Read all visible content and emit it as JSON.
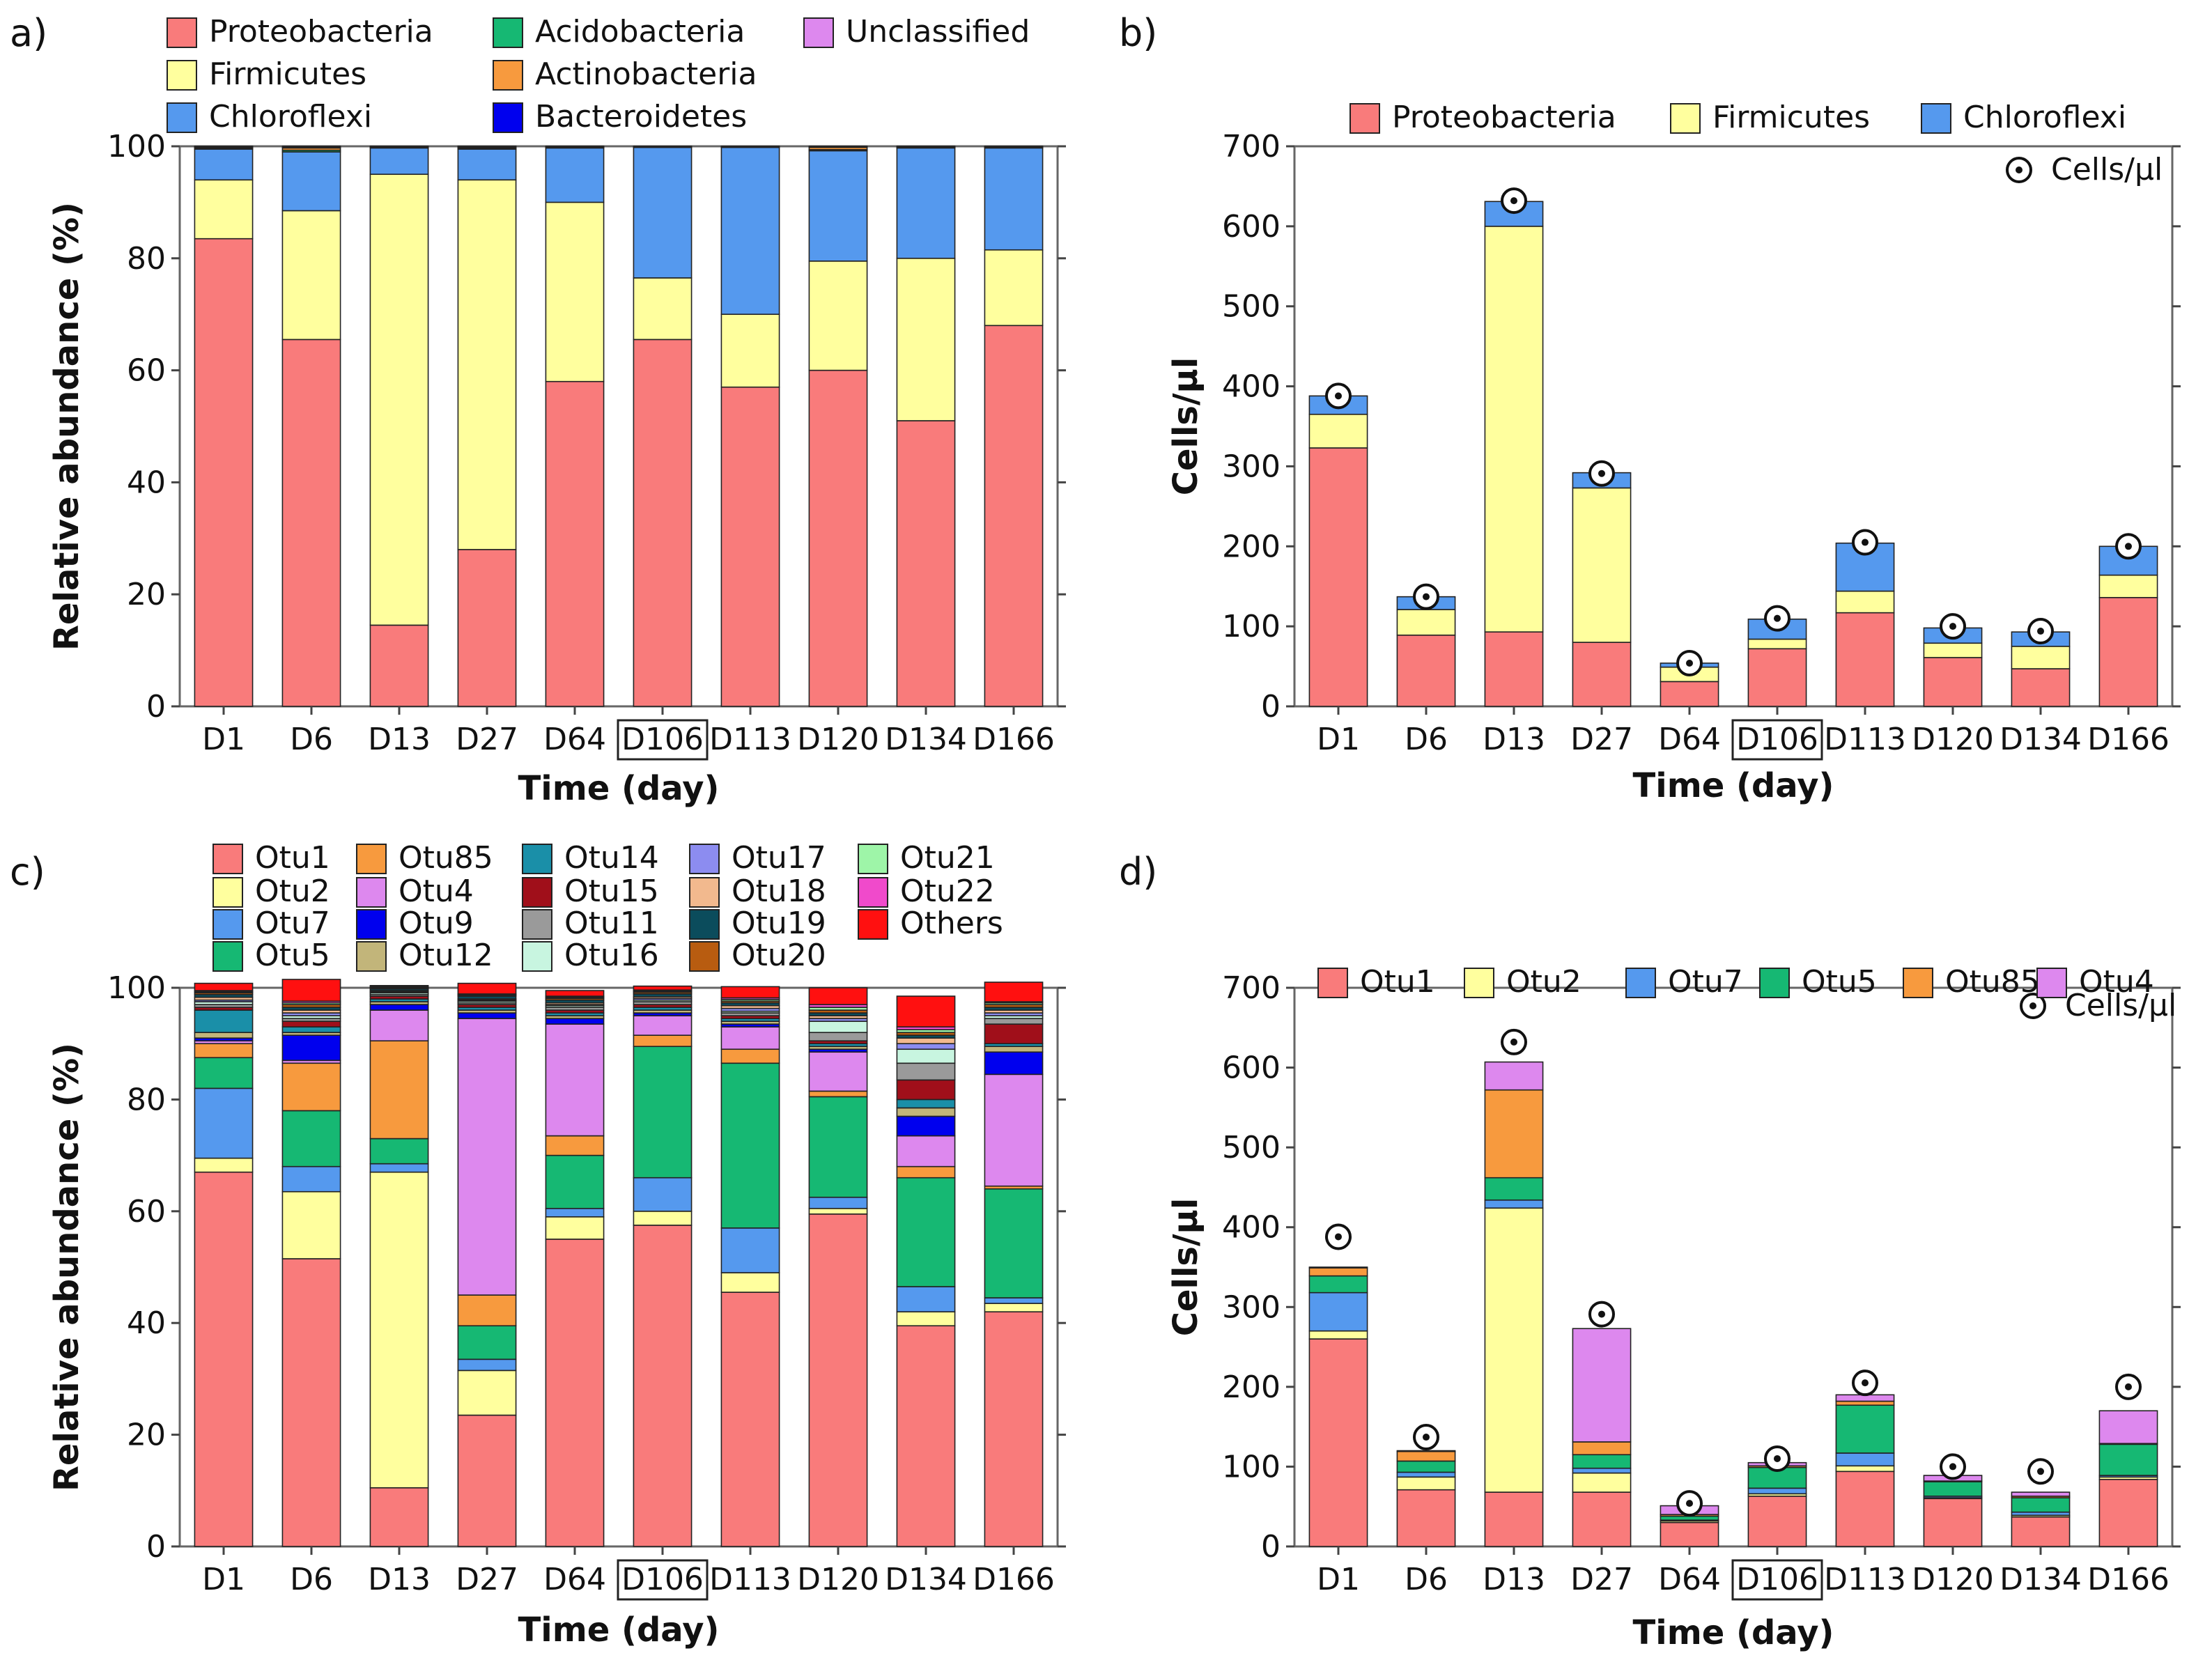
{
  "colors": {
    "Proteobacteria": "#f97b7b",
    "Firmicutes": "#ffff9e",
    "Chloroflexi": "#5599ee",
    "Acidobacteria": "#16b873",
    "Actinobacteria": "#f79a3e",
    "Bacteroidetes": "#0000ee",
    "Unclassified": "#dd88ee",
    "Otu1": "#f97b7b",
    "Otu2": "#ffff9e",
    "Otu7": "#5599ee",
    "Otu5": "#16b873",
    "Otu85": "#f79a3e",
    "Otu4": "#dd88ee",
    "Otu9": "#0000ee",
    "Otu12": "#c2b57a",
    "Otu14": "#1a8fa8",
    "Otu15": "#a00f1a",
    "Otu11": "#9a9a9a",
    "Otu16": "#c8f5e0",
    "Otu17": "#8c8cf0",
    "Otu18": "#f2b98e",
    "Otu19": "#0b4c5c",
    "Otu20": "#b85c10",
    "Otu21": "#9ef5a8",
    "Otu22": "#f04acb",
    "Others": "#ff1010",
    "cells_marker": "#111111"
  },
  "chart_data": [
    {
      "panel": "a)",
      "type": "bar",
      "stacked": true,
      "title": "",
      "xlabel": "Time (day)",
      "ylabel": "Relative abundance (%)",
      "ylim": [
        0,
        100
      ],
      "yticks": [
        0,
        20,
        40,
        60,
        80,
        100
      ],
      "categories": [
        "D1",
        "D6",
        "D13",
        "D27",
        "D64",
        "D106",
        "D113",
        "D120",
        "D134",
        "D166"
      ],
      "highlighted_category": "D106",
      "legend": [
        "Proteobacteria",
        "Firmicutes",
        "Chloroflexi",
        "Acidobacteria",
        "Actinobacteria",
        "Bacteroidetes",
        "Unclassified"
      ],
      "series": [
        {
          "name": "Proteobacteria",
          "values": [
            83.5,
            65.5,
            14.5,
            28.0,
            58.0,
            65.5,
            57.0,
            60.0,
            51.0,
            68.0
          ]
        },
        {
          "name": "Firmicutes",
          "values": [
            10.5,
            23.0,
            80.5,
            66.0,
            32.0,
            11.0,
            13.0,
            19.5,
            29.0,
            13.5
          ]
        },
        {
          "name": "Chloroflexi",
          "values": [
            5.5,
            10.5,
            4.7,
            5.5,
            9.7,
            23.3,
            29.8,
            19.7,
            19.7,
            18.2
          ]
        },
        {
          "name": "Acidobacteria",
          "values": [
            0.1,
            0.3,
            0.1,
            0.1,
            0.1,
            0.1,
            0.1,
            0.2,
            0.1,
            0.1
          ]
        },
        {
          "name": "Actinobacteria",
          "values": [
            0.2,
            0.4,
            0.1,
            0.2,
            0.1,
            0.1,
            0.0,
            0.4,
            0.1,
            0.1
          ]
        },
        {
          "name": "Bacteroidetes",
          "values": [
            0.1,
            0.1,
            0.0,
            0.1,
            0.0,
            0.0,
            0.0,
            0.1,
            0.0,
            0.0
          ]
        },
        {
          "name": "Unclassified",
          "values": [
            0.1,
            0.2,
            0.1,
            0.1,
            0.1,
            0.0,
            0.1,
            0.1,
            0.1,
            0.1
          ]
        }
      ]
    },
    {
      "panel": "b)",
      "type": "bar",
      "stacked": true,
      "title": "",
      "xlabel": "Time (day)",
      "ylabel": "Cells/µl",
      "ylim": [
        0,
        700
      ],
      "yticks": [
        0,
        100,
        200,
        300,
        400,
        500,
        600,
        700
      ],
      "categories": [
        "D1",
        "D6",
        "D13",
        "D27",
        "D64",
        "D106",
        "D113",
        "D120",
        "D134",
        "D166"
      ],
      "highlighted_category": "D106",
      "legend": [
        "Proteobacteria",
        "Firmicutes",
        "Chloroflexi"
      ],
      "marker_legend": "Cells/µl",
      "series": [
        {
          "name": "Proteobacteria",
          "values": [
            323,
            89,
            93,
            80,
            31,
            72,
            117,
            61,
            47,
            136
          ]
        },
        {
          "name": "Firmicutes",
          "values": [
            42,
            32,
            507,
            193,
            18,
            12,
            27,
            18,
            28,
            28
          ]
        },
        {
          "name": "Chloroflexi",
          "values": [
            23,
            16,
            31,
            19,
            5,
            25,
            60,
            19,
            18,
            36
          ]
        }
      ],
      "cells_per_ul": [
        388,
        137,
        632,
        291,
        54,
        110,
        205,
        100,
        94,
        200
      ]
    },
    {
      "panel": "c)",
      "type": "bar",
      "stacked": true,
      "title": "",
      "xlabel": "Time (day)",
      "ylabel": "Relative abundance (%)",
      "ylim": [
        0,
        100
      ],
      "yticks": [
        0,
        20,
        40,
        60,
        80,
        100
      ],
      "categories": [
        "D1",
        "D6",
        "D13",
        "D27",
        "D64",
        "D106",
        "D113",
        "D120",
        "D134",
        "D166"
      ],
      "highlighted_category": "D106",
      "legend": [
        "Otu1",
        "Otu85",
        "Otu14",
        "Otu17",
        "Otu21",
        "Otu2",
        "Otu4",
        "Otu15",
        "Otu18",
        "Otu22",
        "Otu7",
        "Otu9",
        "Otu11",
        "Otu19",
        "Others",
        "Otu5",
        "Otu12",
        "Otu16",
        "Otu20"
      ],
      "series": [
        {
          "name": "Otu1",
          "values": [
            67.0,
            51.5,
            10.5,
            23.5,
            55.0,
            57.5,
            45.5,
            59.5,
            39.5,
            42.0
          ]
        },
        {
          "name": "Otu2",
          "values": [
            2.5,
            12.0,
            56.5,
            8.0,
            4.0,
            2.5,
            3.5,
            1.0,
            2.5,
            1.5
          ]
        },
        {
          "name": "Otu7",
          "values": [
            12.5,
            4.5,
            1.5,
            2.0,
            1.5,
            6.0,
            8.0,
            2.0,
            4.5,
            1.0
          ]
        },
        {
          "name": "Otu5",
          "values": [
            5.5,
            10.0,
            4.5,
            6.0,
            9.5,
            23.5,
            29.5,
            18.0,
            19.5,
            19.5
          ]
        },
        {
          "name": "Otu85",
          "values": [
            2.5,
            8.5,
            17.5,
            5.5,
            3.5,
            2.0,
            2.5,
            1.0,
            2.0,
            0.5
          ]
        },
        {
          "name": "Otu4",
          "values": [
            0.5,
            0.5,
            5.5,
            49.5,
            20.0,
            3.5,
            4.0,
            7.0,
            5.5,
            20.0
          ]
        },
        {
          "name": "Otu9",
          "values": [
            0.5,
            4.5,
            1.0,
            1.0,
            1.0,
            0.5,
            0.5,
            0.5,
            3.5,
            4.0
          ]
        },
        {
          "name": "Otu12",
          "values": [
            1.0,
            0.5,
            0.5,
            0.5,
            0.5,
            0.5,
            0.5,
            0.5,
            1.5,
            1.0
          ]
        },
        {
          "name": "Otu14",
          "values": [
            4.0,
            1.0,
            0.5,
            0.5,
            0.5,
            0.5,
            0.5,
            0.5,
            1.5,
            0.5
          ]
        },
        {
          "name": "Otu15",
          "values": [
            0.5,
            1.0,
            0.5,
            0.5,
            0.5,
            0.5,
            0.5,
            0.5,
            3.5,
            3.5
          ]
        },
        {
          "name": "Otu11",
          "values": [
            0.5,
            0.5,
            0.3,
            0.3,
            0.5,
            0.5,
            0.5,
            1.5,
            3.0,
            1.0
          ]
        },
        {
          "name": "Otu16",
          "values": [
            0.5,
            0.5,
            0.3,
            0.3,
            0.3,
            0.3,
            0.3,
            2.0,
            2.5,
            0.5
          ]
        },
        {
          "name": "Otu17",
          "values": [
            0.3,
            0.5,
            0.2,
            0.2,
            0.2,
            0.3,
            0.5,
            0.5,
            1.0,
            0.5
          ]
        },
        {
          "name": "Otu18",
          "values": [
            0.5,
            0.5,
            0.2,
            0.2,
            0.3,
            0.3,
            0.5,
            0.5,
            1.0,
            0.5
          ]
        },
        {
          "name": "Otu19",
          "values": [
            0.5,
            0.5,
            0.3,
            0.5,
            0.5,
            0.5,
            0.5,
            0.5,
            0.5,
            0.5
          ]
        },
        {
          "name": "Otu20",
          "values": [
            0.3,
            0.5,
            0.2,
            0.2,
            0.3,
            0.3,
            0.3,
            0.5,
            0.5,
            0.5
          ]
        },
        {
          "name": "Otu21",
          "values": [
            0.2,
            0.3,
            0.1,
            0.1,
            0.2,
            0.2,
            0.3,
            0.5,
            0.5,
            0.3
          ]
        },
        {
          "name": "Otu22",
          "values": [
            0.2,
            0.3,
            0.1,
            0.1,
            0.2,
            0.2,
            0.3,
            0.5,
            0.5,
            0.2
          ]
        },
        {
          "name": "Others",
          "values": [
            1.3,
            3.9,
            0.2,
            1.9,
            1.0,
            0.7,
            2.0,
            3.0,
            5.5,
            3.5
          ]
        }
      ]
    },
    {
      "panel": "d)",
      "type": "bar",
      "stacked": true,
      "title": "",
      "xlabel": "Time (day)",
      "ylabel": "Cells/µl",
      "ylim": [
        0,
        700
      ],
      "yticks": [
        0,
        100,
        200,
        300,
        400,
        500,
        600,
        700
      ],
      "categories": [
        "D1",
        "D6",
        "D13",
        "D27",
        "D64",
        "D106",
        "D113",
        "D120",
        "D134",
        "D166"
      ],
      "highlighted_category": "D106",
      "legend": [
        "Otu1",
        "Otu2",
        "Otu7",
        "Otu5",
        "Otu85",
        "Otu4"
      ],
      "marker_legend": "Cells/µl",
      "series": [
        {
          "name": "Otu1",
          "values": [
            260,
            71,
            68,
            68,
            30,
            63,
            94,
            60,
            37,
            84
          ]
        },
        {
          "name": "Otu2",
          "values": [
            10,
            16,
            356,
            24,
            2,
            3,
            7,
            1,
            2,
            3
          ]
        },
        {
          "name": "Otu7",
          "values": [
            48,
            6,
            10,
            6,
            1,
            7,
            16,
            2,
            4,
            2
          ]
        },
        {
          "name": "Otu5",
          "values": [
            21,
            14,
            28,
            17,
            5,
            26,
            60,
            18,
            18,
            39
          ]
        },
        {
          "name": "Otu85",
          "values": [
            10,
            12,
            110,
            16,
            2,
            2,
            5,
            1,
            2,
            1
          ]
        },
        {
          "name": "Otu4",
          "values": [
            1,
            1,
            35,
            142,
            11,
            4,
            8,
            7,
            5,
            41
          ]
        }
      ],
      "cells_per_ul": [
        388,
        137,
        632,
        291,
        54,
        110,
        205,
        100,
        94,
        200
      ]
    }
  ]
}
